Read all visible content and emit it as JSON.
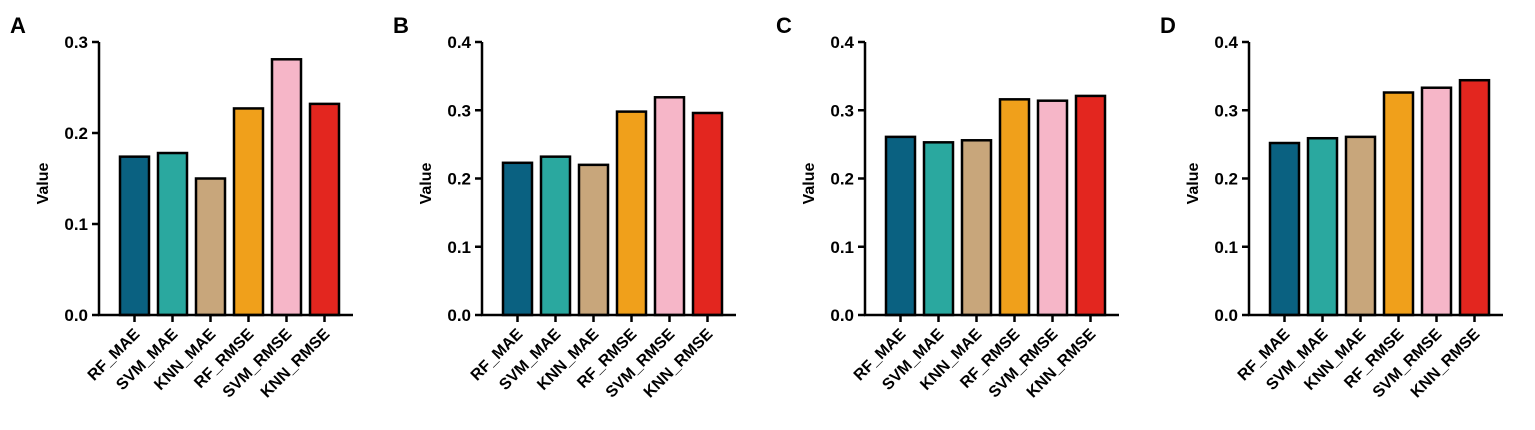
{
  "colors": {
    "RF_MAE": "#0a6181",
    "SVM_MAE": "#2aa89f",
    "KNN_MAE": "#c8a67b",
    "RF_RMSE": "#f0a01b",
    "SVM_RMSE": "#f6b6c8",
    "KNN_RMSE": "#e3261f"
  },
  "chart_data": [
    {
      "type": "bar",
      "panel": "A",
      "categories": [
        "RF_MAE",
        "SVM_MAE",
        "KNN_MAE",
        "RF_RMSE",
        "SVM_RMSE",
        "KNN_RMSE"
      ],
      "values": [
        0.174,
        0.178,
        0.15,
        0.227,
        0.281,
        0.232
      ],
      "ylabel": "Value",
      "ylim": [
        0,
        0.3
      ],
      "yticks": [
        "0.0",
        "0.1",
        "0.2",
        "0.3"
      ]
    },
    {
      "type": "bar",
      "panel": "B",
      "categories": [
        "RF_MAE",
        "SVM_MAE",
        "KNN_MAE",
        "RF_RMSE",
        "SVM_RMSE",
        "KNN_RMSE"
      ],
      "values": [
        0.223,
        0.232,
        0.22,
        0.298,
        0.319,
        0.296
      ],
      "ylabel": "Value",
      "ylim": [
        0,
        0.4
      ],
      "yticks": [
        "0.0",
        "0.1",
        "0.2",
        "0.3",
        "0.4"
      ]
    },
    {
      "type": "bar",
      "panel": "C",
      "categories": [
        "RF_MAE",
        "SVM_MAE",
        "KNN_MAE",
        "RF_RMSE",
        "SVM_RMSE",
        "KNN_RMSE"
      ],
      "values": [
        0.261,
        0.253,
        0.256,
        0.316,
        0.314,
        0.321
      ],
      "ylabel": "Value",
      "ylim": [
        0,
        0.4
      ],
      "yticks": [
        "0.0",
        "0.1",
        "0.2",
        "0.3",
        "0.4"
      ]
    },
    {
      "type": "bar",
      "panel": "D",
      "categories": [
        "RF_MAE",
        "SVM_MAE",
        "KNN_MAE",
        "RF_RMSE",
        "SVM_RMSE",
        "KNN_RMSE"
      ],
      "values": [
        0.252,
        0.259,
        0.261,
        0.326,
        0.333,
        0.344
      ],
      "ylabel": "Value",
      "ylim": [
        0,
        0.4
      ],
      "yticks": [
        "0.0",
        "0.1",
        "0.2",
        "0.3",
        "0.4"
      ]
    }
  ]
}
